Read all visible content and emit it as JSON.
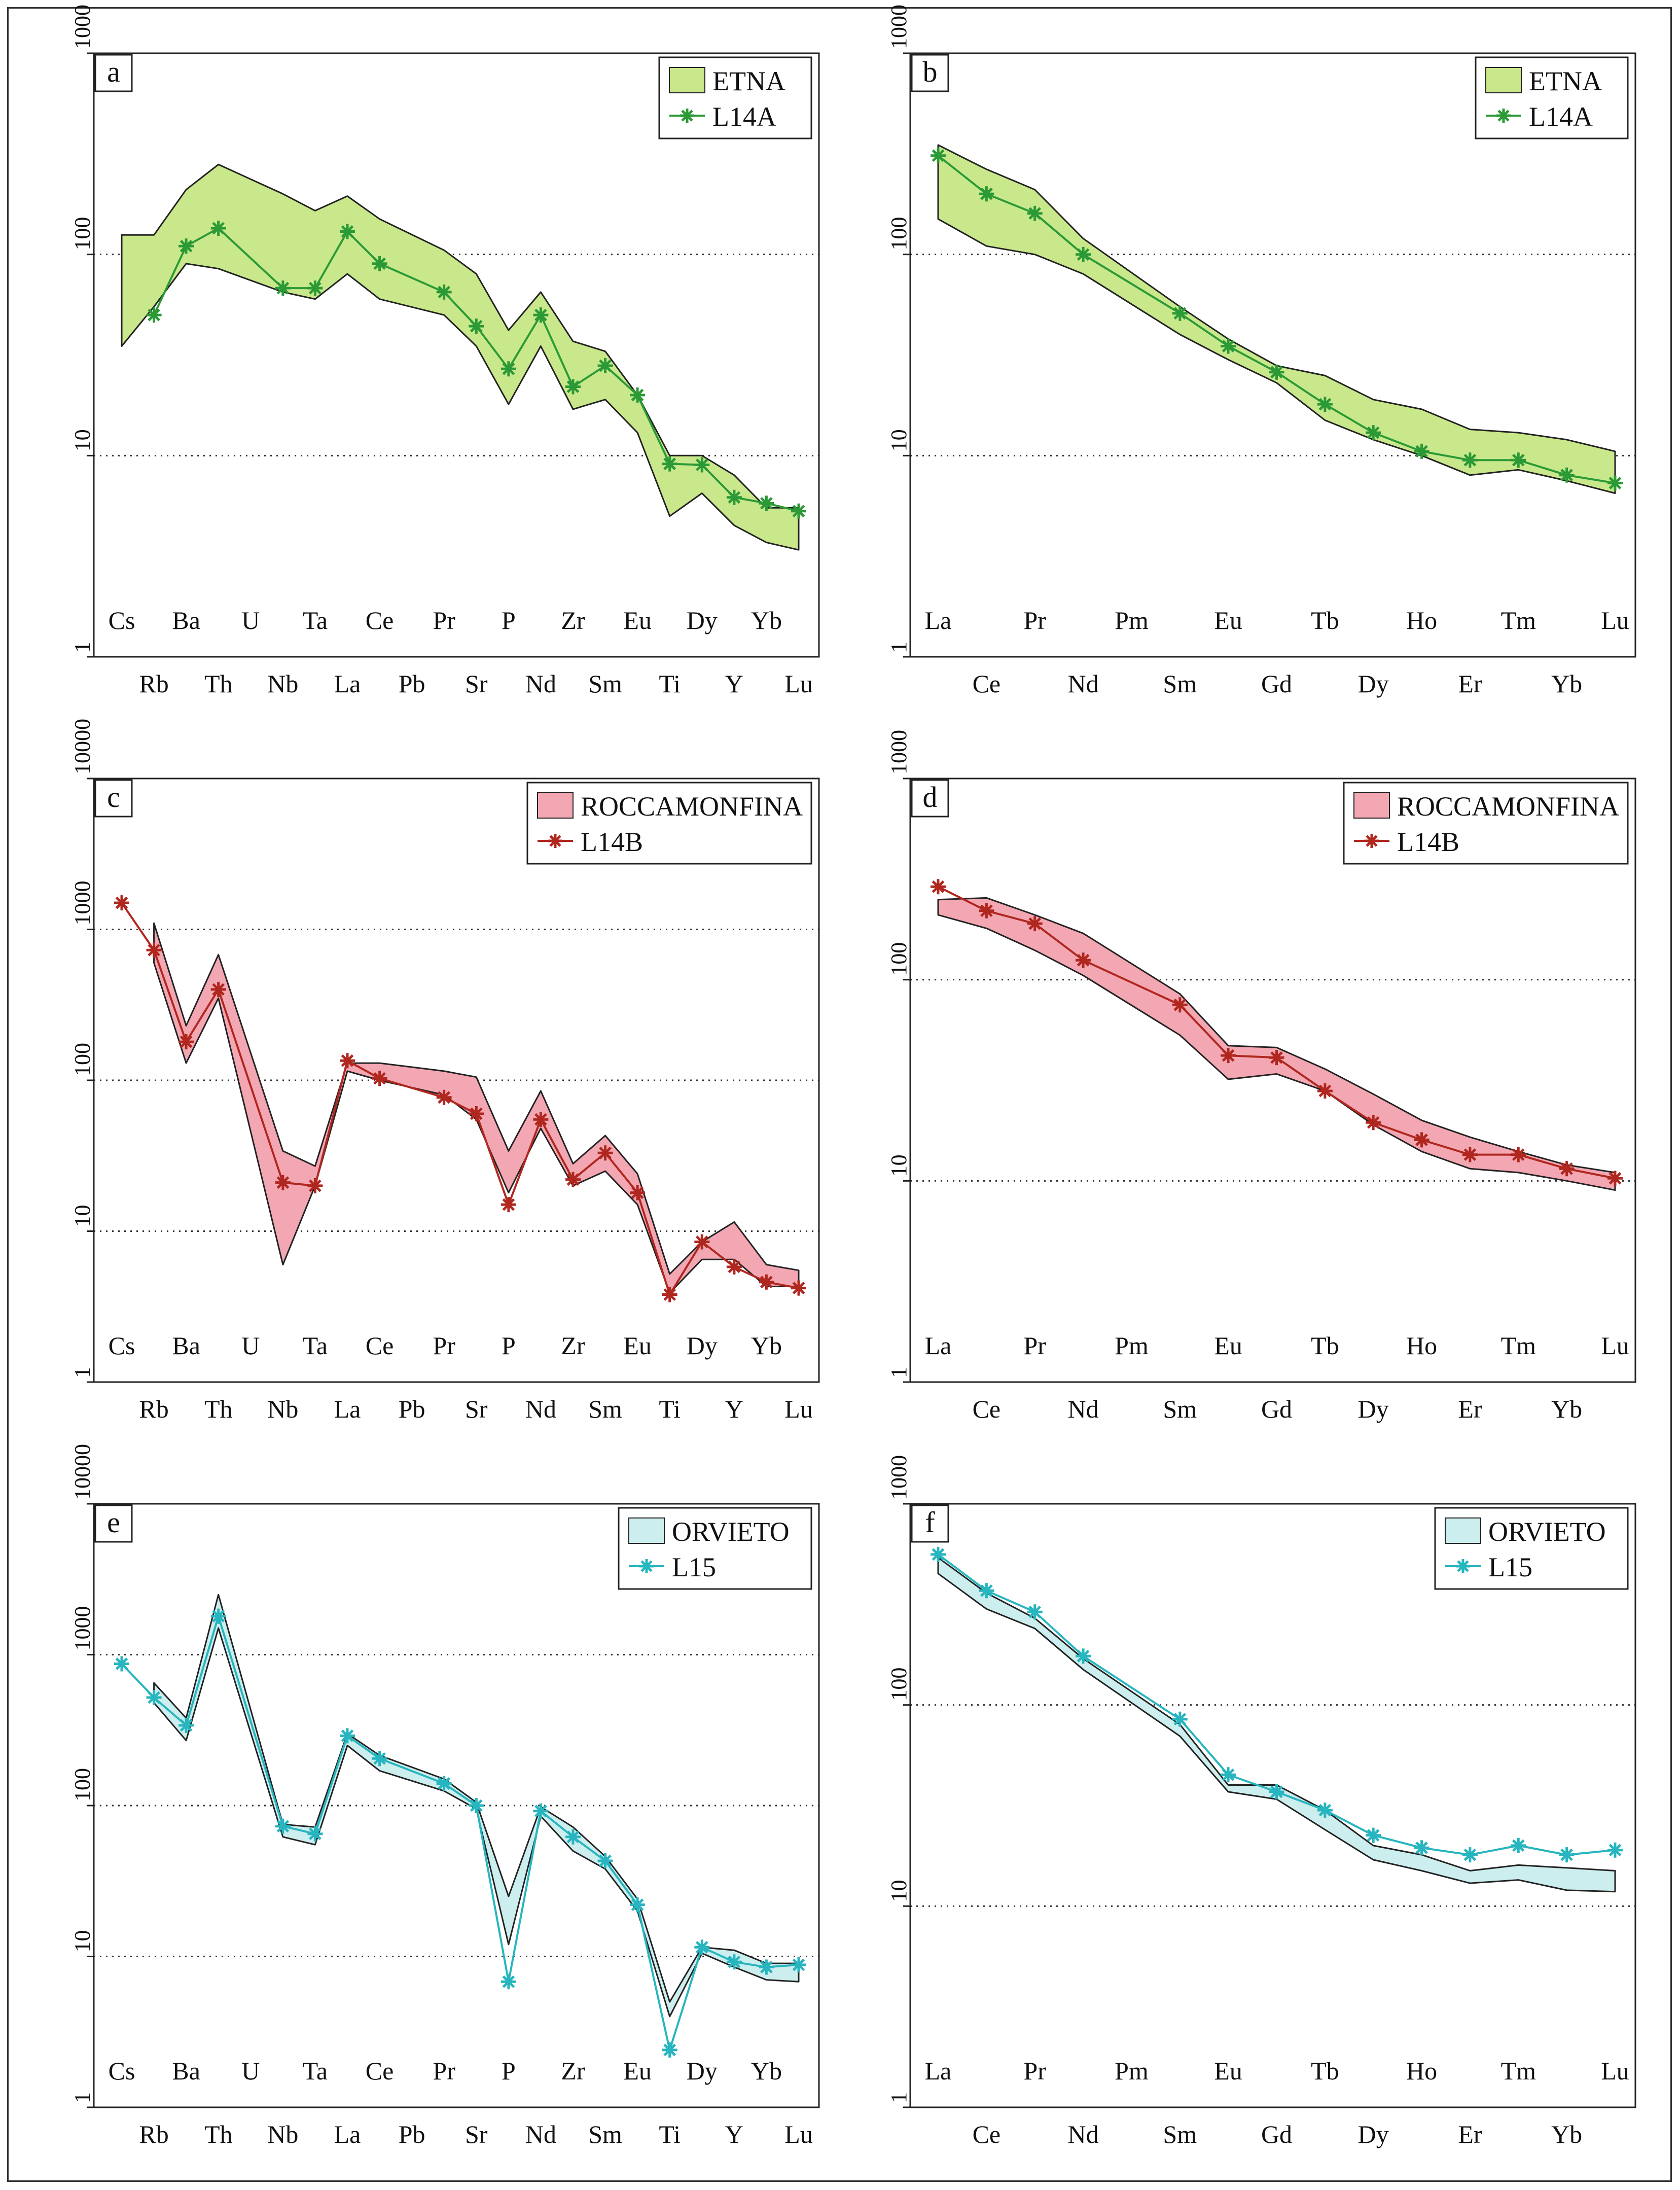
{
  "figure": {
    "title": "",
    "panel_letters": [
      "a",
      "b",
      "c",
      "d",
      "e",
      "f"
    ]
  },
  "colors": {
    "etna_fill": "#c9e88b",
    "etna_line": "#2b9a36",
    "roccamonfina_fill": "#f3a7b3",
    "roccamonfina_line": "#b0271f",
    "orvieto_fill": "#cdeeee",
    "orvieto_line": "#27b5bf",
    "envelope_edge": "#222222"
  },
  "chart_data": [
    {
      "panel": "a",
      "type": "area",
      "title": "",
      "xlabel": "",
      "ylabel": "",
      "yscale": "log",
      "ylim": [
        1,
        1000
      ],
      "y_ticks": [
        "1",
        "10",
        "100",
        "1000"
      ],
      "categories": [
        "Cs",
        "Rb",
        "Ba",
        "Th",
        "U",
        "Nb",
        "Ta",
        "La",
        "Ce",
        "Pb",
        "Pr",
        "Sr",
        "P",
        "Nd",
        "Zr",
        "Sm",
        "Eu",
        "Ti",
        "Dy",
        "Y",
        "Yb",
        "Lu"
      ],
      "legend": {
        "placement": "top-right",
        "band_label": "ETNA",
        "line_label": "L14A"
      },
      "band_upper": [
        125,
        125,
        210,
        280,
        null,
        200,
        165,
        195,
        150,
        null,
        105,
        80,
        42,
        65,
        37,
        33,
        20,
        10,
        10,
        8,
        5.5,
        5.5
      ],
      "band_lower": [
        35,
        55,
        90,
        85,
        null,
        65,
        60,
        80,
        60,
        null,
        50,
        35,
        18,
        35,
        17,
        19,
        13,
        5,
        6.5,
        4.5,
        3.7,
        3.4
      ],
      "series": [
        {
          "name": "L14A",
          "values": [
            null,
            50,
            110,
            135,
            null,
            68,
            68,
            130,
            90,
            null,
            65,
            44,
            27,
            50,
            22,
            28,
            20,
            9.1,
            9,
            6.2,
            5.8,
            5.3
          ]
        }
      ]
    },
    {
      "panel": "b",
      "type": "area",
      "title": "",
      "xlabel": "",
      "ylabel": "",
      "yscale": "log",
      "ylim": [
        1,
        1000
      ],
      "y_ticks": [
        "1",
        "10",
        "100",
        "1000"
      ],
      "categories": [
        "La",
        "Ce",
        "Pr",
        "Nd",
        "Pm",
        "Sm",
        "Eu",
        "Gd",
        "Tb",
        "Dy",
        "Ho",
        "Er",
        "Tm",
        "Yb",
        "Lu"
      ],
      "legend": {
        "placement": "top-right",
        "band_label": "ETNA",
        "line_label": "L14A"
      },
      "band_upper": [
        350,
        265,
        210,
        120,
        null,
        55,
        38,
        28,
        25,
        19,
        17,
        13.5,
        13,
        12,
        10.5
      ],
      "band_lower": [
        150,
        110,
        100,
        80,
        null,
        40,
        30,
        23,
        15,
        12,
        10,
        8,
        8.5,
        7.5,
        6.5
      ],
      "series": [
        {
          "name": "L14A",
          "values": [
            310,
            200,
            160,
            100,
            null,
            51,
            35,
            26,
            18,
            13,
            10.5,
            9.5,
            9.5,
            8,
            7.3
          ]
        }
      ]
    },
    {
      "panel": "c",
      "type": "area",
      "title": "",
      "xlabel": "",
      "ylabel": "",
      "yscale": "log",
      "ylim": [
        1,
        10000
      ],
      "y_ticks": [
        "1",
        "10",
        "100",
        "1000",
        "10000"
      ],
      "categories": [
        "Cs",
        "Rb",
        "Ba",
        "Th",
        "U",
        "Nb",
        "Ta",
        "La",
        "Ce",
        "Pb",
        "Pr",
        "Sr",
        "P",
        "Nd",
        "Zr",
        "Sm",
        "Eu",
        "Ti",
        "Dy",
        "Y",
        "Yb",
        "Lu"
      ],
      "legend": {
        "placement": "top-right",
        "band_label": "ROCCAMONFINA",
        "line_label": "L14B"
      },
      "band_upper": [
        null,
        1100,
        230,
        680,
        null,
        34,
        27,
        130,
        130,
        null,
        115,
        105,
        34,
        85,
        28,
        43,
        24,
        5.2,
        8.5,
        11.5,
        6,
        5.5
      ],
      "band_lower": [
        null,
        600,
        130,
        350,
        null,
        6,
        20,
        115,
        100,
        null,
        80,
        55,
        18,
        48,
        20,
        25,
        15,
        3.9,
        6.5,
        6.5,
        4.3,
        4.3
      ],
      "series": [
        {
          "name": "L14B",
          "values": [
            1500,
            730,
            180,
            400,
            null,
            21,
            20,
            135,
            103,
            null,
            77,
            60,
            15,
            55,
            22,
            33,
            18,
            3.8,
            8.5,
            5.8,
            4.6,
            4.2
          ]
        }
      ]
    },
    {
      "panel": "d",
      "type": "area",
      "title": "",
      "xlabel": "",
      "ylabel": "",
      "yscale": "log",
      "ylim": [
        1,
        1000
      ],
      "y_ticks": [
        "1",
        "10",
        "100",
        "1000"
      ],
      "categories": [
        "La",
        "Ce",
        "Pr",
        "Nd",
        "Pm",
        "Sm",
        "Eu",
        "Gd",
        "Tb",
        "Dy",
        "Ho",
        "Er",
        "Tm",
        "Yb",
        "Lu"
      ],
      "legend": {
        "placement": "top-right",
        "band_label": "ROCCAMONFINA",
        "line_label": "L14B"
      },
      "band_upper": [
        250,
        255,
        210,
        170,
        null,
        85,
        47,
        46,
        36,
        27,
        20,
        16.5,
        14,
        12,
        11
      ],
      "band_lower": [
        210,
        180,
        140,
        105,
        null,
        53,
        32,
        34,
        28,
        19,
        14,
        11.5,
        11,
        10,
        9
      ],
      "series": [
        {
          "name": "L14B",
          "values": [
            290,
            220,
            190,
            125,
            null,
            75,
            42,
            41,
            28,
            19.5,
            16,
            13.5,
            13.5,
            11.5,
            10.3
          ]
        }
      ]
    },
    {
      "panel": "e",
      "type": "area",
      "title": "",
      "xlabel": "",
      "ylabel": "",
      "yscale": "log",
      "ylim": [
        1,
        10000
      ],
      "y_ticks": [
        "1",
        "10",
        "100",
        "1000",
        "10000"
      ],
      "categories": [
        "Cs",
        "Rb",
        "Ba",
        "Th",
        "U",
        "Nb",
        "Ta",
        "La",
        "Ce",
        "Pb",
        "Pr",
        "Sr",
        "P",
        "Nd",
        "Zr",
        "Sm",
        "Eu",
        "Ti",
        "Dy",
        "Y",
        "Yb",
        "Lu"
      ],
      "legend": {
        "placement": "top-right",
        "band_label": "ORVIETO",
        "line_label": "L15"
      },
      "band_upper": [
        null,
        650,
        380,
        2500,
        null,
        75,
        72,
        300,
        215,
        null,
        150,
        105,
        25,
        98,
        72,
        46,
        24,
        5,
        11.5,
        11,
        9,
        9
      ],
      "band_lower": [
        null,
        480,
        270,
        1500,
        null,
        62,
        55,
        250,
        170,
        null,
        125,
        95,
        12,
        85,
        50,
        38,
        20,
        4,
        10.5,
        8.5,
        7,
        6.8
      ],
      "series": [
        {
          "name": "L15",
          "values": [
            870,
            520,
            340,
            1800,
            null,
            73,
            65,
            290,
            205,
            null,
            140,
            100,
            6.8,
            92,
            62,
            43,
            22,
            2.4,
            11.5,
            9.2,
            8.5,
            8.8
          ]
        }
      ]
    },
    {
      "panel": "f",
      "type": "area",
      "title": "",
      "xlabel": "",
      "ylabel": "",
      "yscale": "log",
      "ylim": [
        1,
        1000
      ],
      "y_ticks": [
        "1",
        "10",
        "100",
        "1000"
      ],
      "categories": [
        "La",
        "Ce",
        "Pr",
        "Nd",
        "Pm",
        "Sm",
        "Eu",
        "Gd",
        "Tb",
        "Dy",
        "Ho",
        "Er",
        "Tm",
        "Yb",
        "Lu"
      ],
      "legend": {
        "placement": "top-right",
        "band_label": "ORVIETO",
        "line_label": "L15"
      },
      "band_upper": [
        540,
        360,
        270,
        170,
        null,
        80,
        40,
        40,
        30,
        20,
        18,
        15,
        16,
        15.5,
        15
      ],
      "band_lower": [
        450,
        300,
        240,
        150,
        null,
        70,
        37,
        34,
        24,
        17,
        15,
        13,
        13.5,
        12,
        11.8
      ],
      "series": [
        {
          "name": "L15",
          "values": [
            560,
            370,
            290,
            175,
            null,
            85,
            45,
            37,
            30,
            22.5,
            19.5,
            18,
            20,
            18,
            19
          ]
        }
      ]
    }
  ]
}
